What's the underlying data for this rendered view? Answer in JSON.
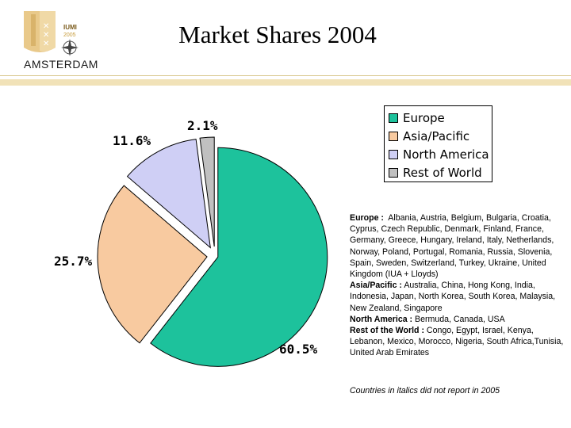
{
  "title": "Market Shares 2004",
  "logo": {
    "line1": "IUMI",
    "line2": "2005",
    "city": "AMSTERDAM"
  },
  "chart_data": {
    "type": "pie",
    "title": "Market Shares 2004",
    "slices": [
      {
        "name": "Europe",
        "value": 60.5,
        "label": "60.5%",
        "color": "#1dc29c"
      },
      {
        "name": "Asia/Pacific",
        "value": 25.7,
        "label": "25.7%",
        "color": "#f8caa0"
      },
      {
        "name": "North America",
        "value": 11.6,
        "label": "11.6%",
        "color": "#cfcff5"
      },
      {
        "name": "Rest of World",
        "value": 2.1,
        "label": "2.1%",
        "color": "#c0c0c0"
      }
    ],
    "legend": "top-right",
    "exploded": true
  },
  "notes": [
    {
      "label": "Europe :",
      "text": "Albania, Austria, Belgium, Bulgaria, Croatia, Cyprus, Czech Republic, Denmark, Finland, France, Germany, Greece, Hungary, Ireland, Italy, Netherlands, Norway, Poland, Portugal, Romania, Russia, Slovenia, Spain, Sweden, Switzerland, Turkey, Ukraine, United Kingdom (IUA + Lloyds)"
    },
    {
      "label": "Asia/Pacific :",
      "text": "Australia, China, Hong Kong, India, Indonesia, Japan, North Korea, South Korea, Malaysia, New Zealand, Singapore"
    },
    {
      "label": "North America :",
      "text": "Bermuda, Canada, USA"
    },
    {
      "label": "Rest of the World :",
      "text": "Congo, Egypt, Israel, Kenya, Lebanon, Mexico, Morocco, Nigeria, South Africa,Tunisia, United Arab Emirates"
    }
  ],
  "footnote": "Countries in italics did not report in 2005"
}
